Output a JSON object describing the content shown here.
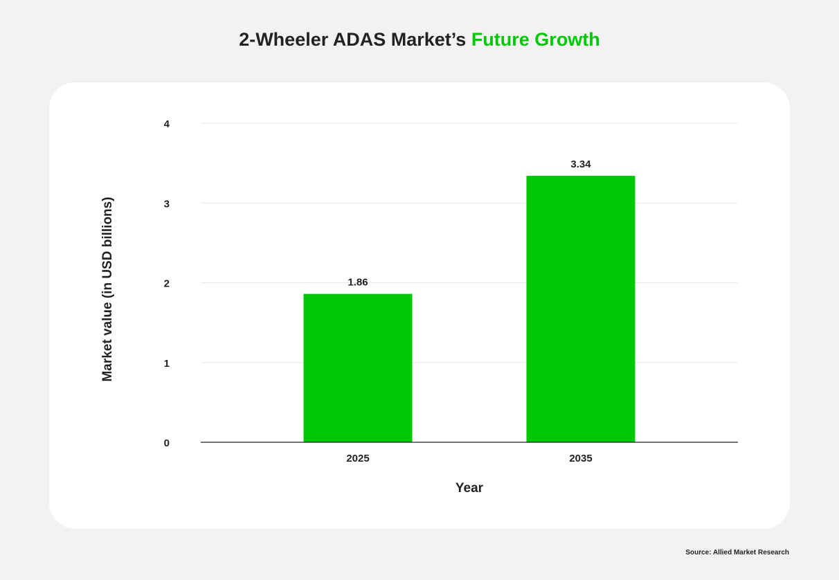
{
  "title": {
    "main": "2-Wheeler ADAS Market’s",
    "accent": "Future Growth"
  },
  "source": "Source: Allied Market Research",
  "colors": {
    "bar": "#00c805",
    "accent": "#00c805",
    "text": "#222222",
    "grid": "#e6e6e6",
    "background": "#f2f2f2",
    "card": "#ffffff"
  },
  "chart_data": {
    "type": "bar",
    "title": "2-Wheeler ADAS Market’s Future Growth",
    "categories": [
      "2025",
      "2035"
    ],
    "values": [
      1.86,
      3.34
    ],
    "value_labels": [
      "1.86",
      "3.34"
    ],
    "xlabel": "Year",
    "ylabel": "Market value (in USD billions)",
    "ylim": [
      0,
      4
    ],
    "yticks": [
      0,
      1,
      2,
      3,
      4
    ],
    "grid": true,
    "legend": "none"
  }
}
